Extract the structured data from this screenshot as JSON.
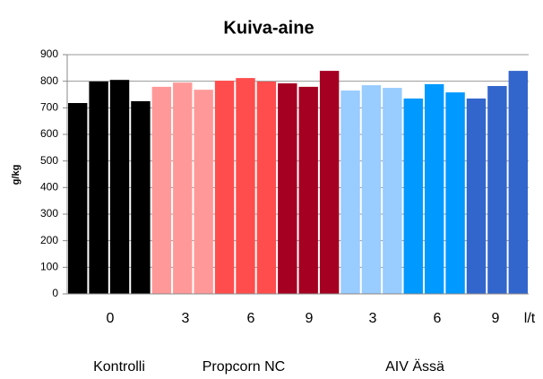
{
  "chart_data": {
    "type": "bar",
    "title": "Kuiva-aine",
    "y_label": "g/kg",
    "values": [
      718,
      799,
      805,
      725,
      779,
      795,
      768,
      802,
      812,
      799,
      792,
      779,
      839,
      765,
      785,
      775,
      735,
      789,
      758,
      735,
      782,
      839
    ],
    "colors": [
      "#000000",
      "#000000",
      "#000000",
      "#000000",
      "#ff9999",
      "#ff9999",
      "#ff9999",
      "#ff4d4d",
      "#ff4d4d",
      "#ff4d4d",
      "#a50021",
      "#a50021",
      "#a50021",
      "#99ccff",
      "#99ccff",
      "#99ccff",
      "#0099ff",
      "#0099ff",
      "#0099ff",
      "#3366cc",
      "#3366cc",
      "#3366cc"
    ],
    "x_tick_labels": [
      "0",
      "3",
      "6",
      "9",
      "3",
      "6",
      "9",
      "l/t"
    ],
    "group_labels": [
      "Kontrolli",
      "Propcorn NC",
      "AIV Ässä"
    ],
    "ylim": [
      0,
      900
    ],
    "yticks": [
      0,
      100,
      200,
      300,
      400,
      500,
      600,
      700,
      800,
      900
    ],
    "grid": true
  }
}
